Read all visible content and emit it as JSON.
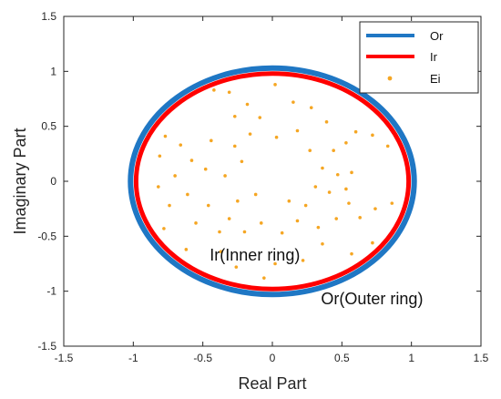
{
  "chart_data": {
    "type": "scatter",
    "title": "",
    "xlabel": "Real Part",
    "ylabel": "Imaginary Part",
    "xlim": [
      -1.5,
      1.5
    ],
    "ylim": [
      -1.5,
      1.5
    ],
    "xticks": [
      "-1.5",
      "-1",
      "-0.5",
      "0",
      "0.5",
      "1",
      "1.5"
    ],
    "yticks": [
      "1.5",
      "1",
      "0.5",
      "0",
      "-0.5",
      "-1",
      "-1.5"
    ],
    "grid": false,
    "legend_position": "top-right",
    "series": [
      {
        "name": "Or",
        "kind": "ellipse-curve",
        "color": "#1f77c4",
        "center": [
          0,
          0
        ],
        "radius_x": 1.02,
        "radius_y": 1.03
      },
      {
        "name": "Ir",
        "kind": "ellipse-curve",
        "color": "#ff0000",
        "center": [
          0,
          0
        ],
        "radius_x": 0.98,
        "radius_y": 0.98
      },
      {
        "name": "Ei",
        "kind": "points",
        "color": "#f5a623",
        "points": [
          [
            -0.42,
            0.83
          ],
          [
            -0.31,
            0.81
          ],
          [
            -0.27,
            0.59
          ],
          [
            -0.18,
            0.7
          ],
          [
            -0.09,
            0.58
          ],
          [
            0.02,
            0.88
          ],
          [
            0.15,
            0.72
          ],
          [
            0.28,
            0.67
          ],
          [
            0.39,
            0.54
          ],
          [
            0.44,
            0.28
          ],
          [
            0.53,
            0.35
          ],
          [
            0.6,
            0.45
          ],
          [
            0.72,
            0.42
          ],
          [
            0.83,
            0.32
          ],
          [
            -0.77,
            0.41
          ],
          [
            -0.81,
            0.23
          ],
          [
            -0.66,
            0.33
          ],
          [
            -0.58,
            0.19
          ],
          [
            -0.7,
            0.05
          ],
          [
            -0.82,
            -0.05
          ],
          [
            -0.61,
            -0.12
          ],
          [
            -0.74,
            -0.22
          ],
          [
            -0.78,
            -0.43
          ],
          [
            -0.55,
            -0.38
          ],
          [
            -0.46,
            -0.22
          ],
          [
            -0.38,
            -0.46
          ],
          [
            -0.31,
            -0.34
          ],
          [
            -0.2,
            -0.46
          ],
          [
            -0.08,
            -0.38
          ],
          [
            0.07,
            -0.47
          ],
          [
            0.18,
            -0.36
          ],
          [
            0.33,
            -0.42
          ],
          [
            0.46,
            -0.34
          ],
          [
            0.55,
            -0.2
          ],
          [
            0.63,
            -0.33
          ],
          [
            0.74,
            -0.25
          ],
          [
            0.86,
            -0.2
          ],
          [
            0.57,
            0.08
          ],
          [
            0.47,
            0.06
          ],
          [
            0.36,
            0.12
          ],
          [
            0.31,
            -0.05
          ],
          [
            0.41,
            -0.1
          ],
          [
            0.53,
            -0.07
          ],
          [
            -0.44,
            0.37
          ],
          [
            -0.27,
            0.32
          ],
          [
            -0.16,
            0.43
          ],
          [
            0.03,
            0.4
          ],
          [
            0.18,
            0.46
          ],
          [
            0.27,
            0.28
          ],
          [
            -0.34,
            0.05
          ],
          [
            -0.22,
            0.18
          ],
          [
            -0.48,
            0.11
          ],
          [
            -0.25,
            -0.18
          ],
          [
            -0.12,
            -0.12
          ],
          [
            0.12,
            -0.18
          ],
          [
            0.24,
            -0.22
          ],
          [
            -0.62,
            -0.62
          ],
          [
            -0.37,
            -0.64
          ],
          [
            -0.26,
            -0.78
          ],
          [
            0.02,
            -0.75
          ],
          [
            0.22,
            -0.72
          ],
          [
            0.36,
            -0.57
          ],
          [
            0.57,
            -0.66
          ],
          [
            0.72,
            -0.56
          ],
          [
            -0.06,
            -0.88
          ]
        ]
      }
    ],
    "annotations": [
      {
        "text": "Ir(Inner ring)",
        "x": -0.45,
        "y": -0.72
      },
      {
        "text": "Or(Outer ring)",
        "x": 0.35,
        "y": -1.12
      }
    ]
  }
}
